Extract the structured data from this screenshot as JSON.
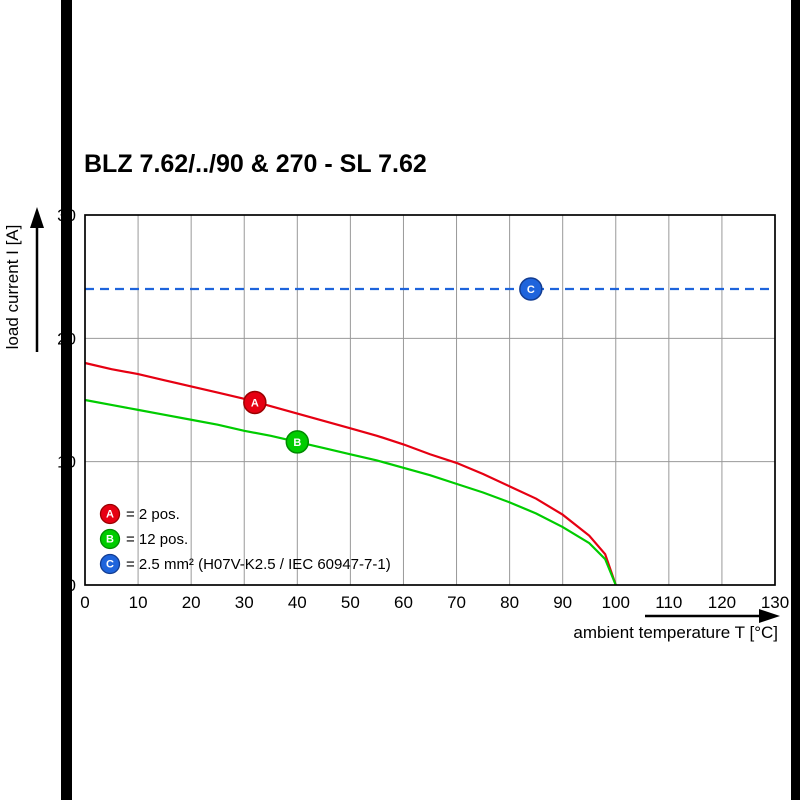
{
  "chart_data": {
    "type": "line",
    "title": "BLZ 7.62/../90 & 270 - SL 7.62",
    "xlabel": "ambient temperature T [°C]",
    "ylabel": "load current I [A]",
    "xlim": [
      0,
      130
    ],
    "ylim": [
      0,
      30
    ],
    "x_ticks": [
      0,
      10,
      20,
      30,
      40,
      50,
      60,
      70,
      80,
      90,
      100,
      110,
      120,
      130
    ],
    "y_ticks": [
      0,
      10,
      20,
      30
    ],
    "grid": true,
    "grid_color": "#999999",
    "legend_position": "inside-bottom-left",
    "series": [
      {
        "name": "A",
        "label": "= 2 pos.",
        "color": "#e60012",
        "ring": "#990000",
        "dashed": false,
        "x": [
          0,
          5,
          10,
          15,
          20,
          25,
          30,
          35,
          40,
          45,
          50,
          55,
          60,
          65,
          70,
          75,
          80,
          85,
          90,
          95,
          98,
          100
        ],
        "y": [
          18,
          17.5,
          17.1,
          16.6,
          16.1,
          15.6,
          15.1,
          14.5,
          13.9,
          13.3,
          12.7,
          12.1,
          11.4,
          10.6,
          9.9,
          9,
          8,
          7,
          5.7,
          4,
          2.5,
          0
        ],
        "marker": {
          "x": 32,
          "y": 14.8
        }
      },
      {
        "name": "B",
        "label": "= 12 pos.",
        "color": "#00cc00",
        "ring": "#008a00",
        "dashed": false,
        "x": [
          0,
          5,
          10,
          15,
          20,
          25,
          30,
          35,
          40,
          45,
          50,
          55,
          60,
          65,
          70,
          75,
          80,
          85,
          90,
          95,
          98,
          100
        ],
        "y": [
          15,
          14.6,
          14.2,
          13.8,
          13.4,
          13,
          12.5,
          12.1,
          11.6,
          11.1,
          10.6,
          10.1,
          9.5,
          8.9,
          8.2,
          7.5,
          6.7,
          5.8,
          4.7,
          3.4,
          2.1,
          0
        ],
        "marker": {
          "x": 40,
          "y": 11.6
        }
      },
      {
        "name": "C",
        "label": "= 2.5 mm² (H07V-K2.5 / IEC 60947-7-1)",
        "color": "#1e64dc",
        "ring": "#123c91",
        "dashed": true,
        "x": [
          0,
          130
        ],
        "y": [
          24,
          24
        ],
        "marker": {
          "x": 84,
          "y": 24
        }
      }
    ]
  }
}
